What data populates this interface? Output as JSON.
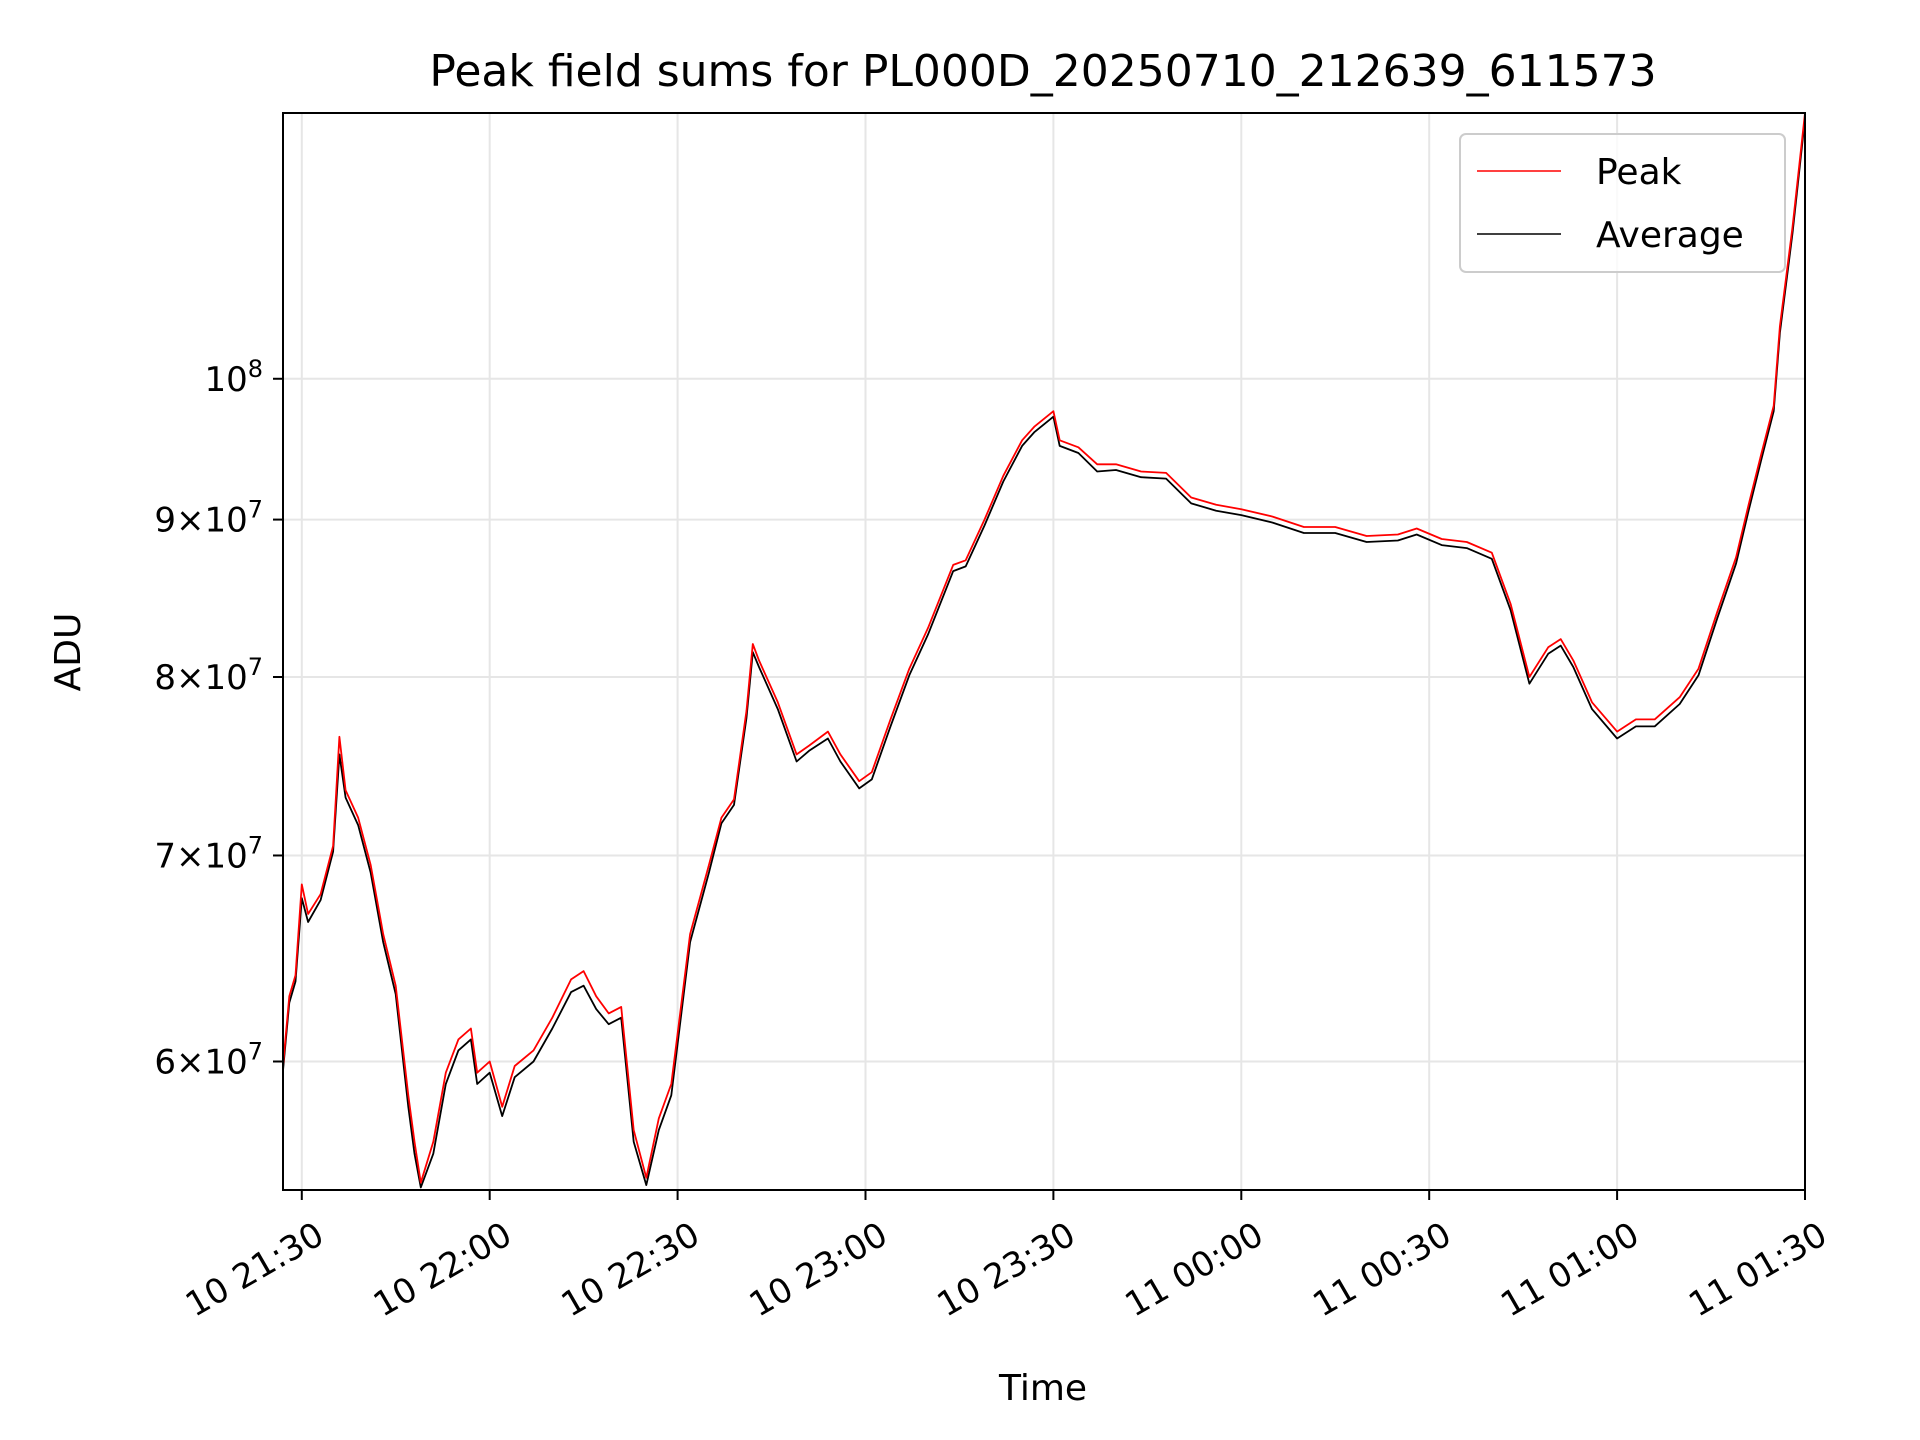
{
  "chart_data": {
    "type": "line",
    "title": "Peak field sums for PL000D_20250710_212639_611573",
    "xlabel": "Time",
    "ylabel": "ADU",
    "yscale": "log",
    "ylim": [
      54500000,
      122000000
    ],
    "xlim": [
      "2025-07-10 21:27",
      "2025-07-11 01:30"
    ],
    "grid": true,
    "legend": "upper right",
    "x_ticks": [
      {
        "t": "2025-07-10 21:30",
        "label": "10 21:30"
      },
      {
        "t": "2025-07-10 22:00",
        "label": "10 22:00"
      },
      {
        "t": "2025-07-10 22:30",
        "label": "10 22:30"
      },
      {
        "t": "2025-07-10 23:00",
        "label": "10 23:00"
      },
      {
        "t": "2025-07-10 23:30",
        "label": "10 23:30"
      },
      {
        "t": "2025-07-11 00:00",
        "label": "11 00:00"
      },
      {
        "t": "2025-07-11 00:30",
        "label": "11 00:30"
      },
      {
        "t": "2025-07-11 01:00",
        "label": "11 01:00"
      },
      {
        "t": "2025-07-11 01:30",
        "label": "11 01:30"
      }
    ],
    "y_ticks": [
      {
        "v": 60000000,
        "mant": "6",
        "exp": "7"
      },
      {
        "v": 70000000,
        "mant": "7",
        "exp": "7"
      },
      {
        "v": 80000000,
        "mant": "8",
        "exp": "7"
      },
      {
        "v": 90000000,
        "mant": "9",
        "exp": "7"
      },
      {
        "v": 100000000,
        "mant": "",
        "exp": "8"
      }
    ],
    "series": [
      {
        "name": "Peak",
        "color": "#ff0000",
        "points": [
          [
            "2025-07-10 21:27",
            59800000
          ],
          [
            "2025-07-10 21:28",
            63000000
          ],
          [
            "2025-07-10 21:29",
            64000000
          ],
          [
            "2025-07-10 21:30",
            68500000
          ],
          [
            "2025-07-10 21:31",
            67000000
          ],
          [
            "2025-07-10 21:33",
            68000000
          ],
          [
            "2025-07-10 21:35",
            70500000
          ],
          [
            "2025-07-10 21:36",
            76500000
          ],
          [
            "2025-07-10 21:37",
            73500000
          ],
          [
            "2025-07-10 21:39",
            72000000
          ],
          [
            "2025-07-10 21:41",
            69500000
          ],
          [
            "2025-07-10 21:43",
            66000000
          ],
          [
            "2025-07-10 21:45",
            63500000
          ],
          [
            "2025-07-10 21:47",
            58500000
          ],
          [
            "2025-07-10 21:48",
            56500000
          ],
          [
            "2025-07-10 21:49",
            54800000
          ],
          [
            "2025-07-10 21:51",
            56500000
          ],
          [
            "2025-07-10 21:53",
            59500000
          ],
          [
            "2025-07-10 21:55",
            61000000
          ],
          [
            "2025-07-10 21:57",
            61500000
          ],
          [
            "2025-07-10 21:58",
            59500000
          ],
          [
            "2025-07-10 22:00",
            60000000
          ],
          [
            "2025-07-10 22:02",
            58000000
          ],
          [
            "2025-07-10 22:04",
            59800000
          ],
          [
            "2025-07-10 22:07",
            60500000
          ],
          [
            "2025-07-10 22:10",
            62000000
          ],
          [
            "2025-07-10 22:13",
            63800000
          ],
          [
            "2025-07-10 22:15",
            64200000
          ],
          [
            "2025-07-10 22:17",
            63000000
          ],
          [
            "2025-07-10 22:19",
            62200000
          ],
          [
            "2025-07-10 22:21",
            62500000
          ],
          [
            "2025-07-10 22:23",
            57000000
          ],
          [
            "2025-07-10 22:25",
            55000000
          ],
          [
            "2025-07-10 22:27",
            57500000
          ],
          [
            "2025-07-10 22:29",
            59000000
          ],
          [
            "2025-07-10 22:32",
            66000000
          ],
          [
            "2025-07-10 22:35",
            69500000
          ],
          [
            "2025-07-10 22:37",
            72000000
          ],
          [
            "2025-07-10 22:39",
            73000000
          ],
          [
            "2025-07-10 22:41",
            78000000
          ],
          [
            "2025-07-10 22:42",
            82000000
          ],
          [
            "2025-07-10 22:43",
            81000000
          ],
          [
            "2025-07-10 22:46",
            78500000
          ],
          [
            "2025-07-10 22:49",
            75500000
          ],
          [
            "2025-07-10 22:51",
            76000000
          ],
          [
            "2025-07-10 22:54",
            76800000
          ],
          [
            "2025-07-10 22:56",
            75500000
          ],
          [
            "2025-07-10 22:59",
            74000000
          ],
          [
            "2025-07-10 23:01",
            74500000
          ],
          [
            "2025-07-10 23:04",
            77500000
          ],
          [
            "2025-07-10 23:07",
            80500000
          ],
          [
            "2025-07-10 23:10",
            83000000
          ],
          [
            "2025-07-10 23:14",
            87000000
          ],
          [
            "2025-07-10 23:16",
            87300000
          ],
          [
            "2025-07-10 23:19",
            90000000
          ],
          [
            "2025-07-10 23:22",
            93000000
          ],
          [
            "2025-07-10 23:25",
            95500000
          ],
          [
            "2025-07-10 23:27",
            96500000
          ],
          [
            "2025-07-10 23:30",
            97600000
          ],
          [
            "2025-07-10 23:31",
            95500000
          ],
          [
            "2025-07-10 23:34",
            95000000
          ],
          [
            "2025-07-10 23:37",
            93800000
          ],
          [
            "2025-07-10 23:40",
            93800000
          ],
          [
            "2025-07-10 23:44",
            93300000
          ],
          [
            "2025-07-10 23:48",
            93200000
          ],
          [
            "2025-07-10 23:52",
            91500000
          ],
          [
            "2025-07-10 23:56",
            91000000
          ],
          [
            "2025-07-11 00:00",
            90700000
          ],
          [
            "2025-07-11 00:05",
            90200000
          ],
          [
            "2025-07-11 00:10",
            89500000
          ],
          [
            "2025-07-11 00:15",
            89500000
          ],
          [
            "2025-07-11 00:20",
            88900000
          ],
          [
            "2025-07-11 00:25",
            89000000
          ],
          [
            "2025-07-11 00:28",
            89400000
          ],
          [
            "2025-07-11 00:32",
            88700000
          ],
          [
            "2025-07-11 00:36",
            88500000
          ],
          [
            "2025-07-11 00:40",
            87800000
          ],
          [
            "2025-07-11 00:43",
            84500000
          ],
          [
            "2025-07-11 00:46",
            80000000
          ],
          [
            "2025-07-11 00:49",
            81800000
          ],
          [
            "2025-07-11 00:51",
            82300000
          ],
          [
            "2025-07-11 00:53",
            81000000
          ],
          [
            "2025-07-11 00:56",
            78500000
          ],
          [
            "2025-07-11 01:00",
            76800000
          ],
          [
            "2025-07-11 01:03",
            77500000
          ],
          [
            "2025-07-11 01:06",
            77500000
          ],
          [
            "2025-07-11 01:10",
            78800000
          ],
          [
            "2025-07-11 01:13",
            80500000
          ],
          [
            "2025-07-11 01:16",
            84000000
          ],
          [
            "2025-07-11 01:19",
            87500000
          ],
          [
            "2025-07-11 01:21",
            91000000
          ],
          [
            "2025-07-11 01:23",
            94500000
          ],
          [
            "2025-07-11 01:25",
            98000000
          ],
          [
            "2025-07-11 01:26",
            104000000
          ],
          [
            "2025-07-11 01:28",
            112000000
          ],
          [
            "2025-07-11 01:30",
            122000000
          ]
        ]
      },
      {
        "name": "Average",
        "color": "#000000",
        "points": [
          [
            "2025-07-10 21:27",
            59600000
          ],
          [
            "2025-07-10 21:28",
            62700000
          ],
          [
            "2025-07-10 21:29",
            63700000
          ],
          [
            "2025-07-10 21:30",
            67800000
          ],
          [
            "2025-07-10 21:31",
            66600000
          ],
          [
            "2025-07-10 21:33",
            67700000
          ],
          [
            "2025-07-10 21:35",
            70200000
          ],
          [
            "2025-07-10 21:36",
            75500000
          ],
          [
            "2025-07-10 21:37",
            73100000
          ],
          [
            "2025-07-10 21:39",
            71600000
          ],
          [
            "2025-07-10 21:41",
            69100000
          ],
          [
            "2025-07-10 21:43",
            65600000
          ],
          [
            "2025-07-10 21:45",
            63100000
          ],
          [
            "2025-07-10 21:47",
            58000000
          ],
          [
            "2025-07-10 21:48",
            56000000
          ],
          [
            "2025-07-10 21:49",
            54600000
          ],
          [
            "2025-07-10 21:51",
            56000000
          ],
          [
            "2025-07-10 21:53",
            59000000
          ],
          [
            "2025-07-10 21:55",
            60500000
          ],
          [
            "2025-07-10 21:57",
            61000000
          ],
          [
            "2025-07-10 21:58",
            59000000
          ],
          [
            "2025-07-10 22:00",
            59500000
          ],
          [
            "2025-07-10 22:02",
            57600000
          ],
          [
            "2025-07-10 22:04",
            59300000
          ],
          [
            "2025-07-10 22:07",
            60000000
          ],
          [
            "2025-07-10 22:10",
            61500000
          ],
          [
            "2025-07-10 22:13",
            63200000
          ],
          [
            "2025-07-10 22:15",
            63500000
          ],
          [
            "2025-07-10 22:17",
            62400000
          ],
          [
            "2025-07-10 22:19",
            61700000
          ],
          [
            "2025-07-10 22:21",
            62000000
          ],
          [
            "2025-07-10 22:23",
            56500000
          ],
          [
            "2025-07-10 22:25",
            54700000
          ],
          [
            "2025-07-10 22:27",
            57000000
          ],
          [
            "2025-07-10 22:29",
            58500000
          ],
          [
            "2025-07-10 22:32",
            65600000
          ],
          [
            "2025-07-10 22:35",
            69100000
          ],
          [
            "2025-07-10 22:37",
            71700000
          ],
          [
            "2025-07-10 22:39",
            72700000
          ],
          [
            "2025-07-10 22:41",
            77600000
          ],
          [
            "2025-07-10 22:42",
            81500000
          ],
          [
            "2025-07-10 22:43",
            80600000
          ],
          [
            "2025-07-10 22:46",
            78100000
          ],
          [
            "2025-07-10 22:49",
            75100000
          ],
          [
            "2025-07-10 22:51",
            75700000
          ],
          [
            "2025-07-10 22:54",
            76400000
          ],
          [
            "2025-07-10 22:56",
            75100000
          ],
          [
            "2025-07-10 22:59",
            73600000
          ],
          [
            "2025-07-10 23:01",
            74100000
          ],
          [
            "2025-07-10 23:04",
            77100000
          ],
          [
            "2025-07-10 23:07",
            80100000
          ],
          [
            "2025-07-10 23:10",
            82600000
          ],
          [
            "2025-07-10 23:14",
            86600000
          ],
          [
            "2025-07-10 23:16",
            86900000
          ],
          [
            "2025-07-10 23:19",
            89600000
          ],
          [
            "2025-07-10 23:22",
            92600000
          ],
          [
            "2025-07-10 23:25",
            95100000
          ],
          [
            "2025-07-10 23:27",
            96100000
          ],
          [
            "2025-07-10 23:30",
            97200000
          ],
          [
            "2025-07-10 23:31",
            95100000
          ],
          [
            "2025-07-10 23:34",
            94600000
          ],
          [
            "2025-07-10 23:37",
            93300000
          ],
          [
            "2025-07-10 23:40",
            93400000
          ],
          [
            "2025-07-10 23:44",
            92900000
          ],
          [
            "2025-07-10 23:48",
            92800000
          ],
          [
            "2025-07-10 23:52",
            91100000
          ],
          [
            "2025-07-10 23:56",
            90600000
          ],
          [
            "2025-07-11 00:00",
            90300000
          ],
          [
            "2025-07-11 00:05",
            89800000
          ],
          [
            "2025-07-11 00:10",
            89100000
          ],
          [
            "2025-07-11 00:15",
            89100000
          ],
          [
            "2025-07-11 00:20",
            88500000
          ],
          [
            "2025-07-11 00:25",
            88600000
          ],
          [
            "2025-07-11 00:28",
            89000000
          ],
          [
            "2025-07-11 00:32",
            88300000
          ],
          [
            "2025-07-11 00:36",
            88100000
          ],
          [
            "2025-07-11 00:40",
            87400000
          ],
          [
            "2025-07-11 00:43",
            84100000
          ],
          [
            "2025-07-11 00:46",
            79600000
          ],
          [
            "2025-07-11 00:49",
            81400000
          ],
          [
            "2025-07-11 00:51",
            81900000
          ],
          [
            "2025-07-11 00:53",
            80600000
          ],
          [
            "2025-07-11 00:56",
            78100000
          ],
          [
            "2025-07-11 01:00",
            76400000
          ],
          [
            "2025-07-11 01:03",
            77100000
          ],
          [
            "2025-07-11 01:06",
            77100000
          ],
          [
            "2025-07-11 01:10",
            78400000
          ],
          [
            "2025-07-11 01:13",
            80100000
          ],
          [
            "2025-07-11 01:16",
            83600000
          ],
          [
            "2025-07-11 01:19",
            87100000
          ],
          [
            "2025-07-11 01:21",
            90600000
          ],
          [
            "2025-07-11 01:23",
            94100000
          ],
          [
            "2025-07-11 01:25",
            97600000
          ],
          [
            "2025-07-11 01:26",
            103500000
          ],
          [
            "2025-07-11 01:28",
            111500000
          ],
          [
            "2025-07-11 01:30",
            121500000
          ]
        ]
      }
    ]
  }
}
